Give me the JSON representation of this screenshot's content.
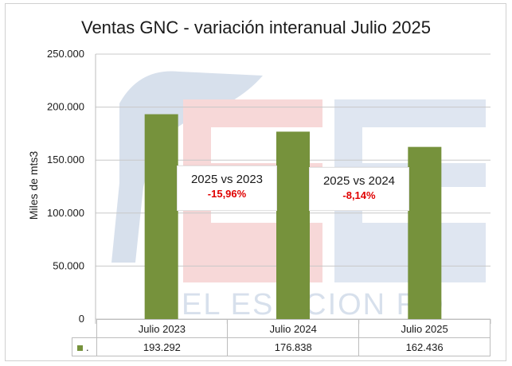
{
  "chart_data": {
    "type": "bar",
    "title": "Ventas GNC - variación interanual Julio 2025",
    "ylabel": "Miles de mts3",
    "xlabel": "",
    "categories": [
      "Julio 2023",
      "Julio 2024",
      "Julio 2025"
    ],
    "series": [
      {
        "name": ".",
        "values": [
          193292,
          176838,
          162436
        ],
        "color": "#76923c"
      }
    ],
    "value_labels": [
      "193.292",
      "176.838",
      "162.436"
    ],
    "ylim": [
      0,
      250000
    ],
    "yticks": [
      {
        "value": 0,
        "label": "0"
      },
      {
        "value": 50000,
        "label": "50.000"
      },
      {
        "value": 100000,
        "label": "100.000"
      },
      {
        "value": 150000,
        "label": "150.000"
      },
      {
        "value": 200000,
        "label": "200.000"
      },
      {
        "value": 250000,
        "label": "250.000"
      }
    ],
    "grid": true,
    "data_table": true,
    "annotations": [
      {
        "title": "2025 vs 2023",
        "value": "-15,96%"
      },
      {
        "title": "2025 vs 2024",
        "value": "-8,14%"
      }
    ]
  },
  "watermark": {
    "text": "EL ESTACIONERO",
    "visible_text": "EL ES    ACION RO"
  },
  "colors": {
    "bar": "#76923c",
    "negative": "#e00000"
  }
}
